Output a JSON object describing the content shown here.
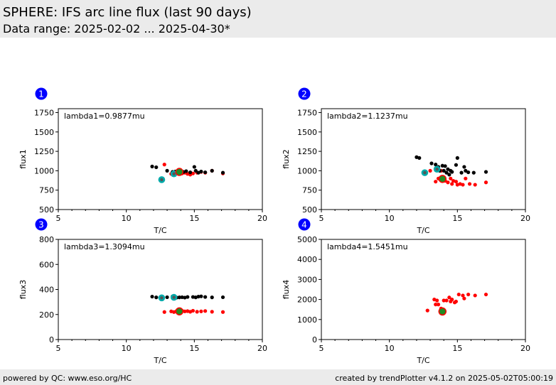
{
  "header": {
    "title": "SPHERE: IFS arc line flux (last 90 days)",
    "subtitle": "Data range: 2025-02-02 ... 2025-04-30*"
  },
  "footer": {
    "left": "powered by QC: www.eso.org/HC",
    "right": "created by trendPlotter v4.1.2 on 2025-05-02T05:00:19"
  },
  "colors": {
    "current": "#000000",
    "other": "#ff0000",
    "highlight": "#00aaaa",
    "median": "#228b22",
    "badge": "#0000ff"
  },
  "chart_data": [
    {
      "type": "scatter",
      "badge": "1",
      "annotation": "lambda1=0.9877mu",
      "xlabel": "T/C",
      "ylabel": "flux1",
      "xlim": [
        5,
        20
      ],
      "ylim": [
        500,
        1800
      ],
      "xticks": [
        5,
        10,
        15,
        20
      ],
      "yticks": [
        500,
        750,
        1000,
        1250,
        1500,
        1750
      ],
      "series": [
        {
          "role": "black",
          "x": [
            11.9,
            12.2,
            13.0,
            13.4,
            13.6,
            13.8,
            14.0,
            14.2,
            14.4,
            14.7,
            15.0,
            15.1,
            15.3,
            15.5,
            15.8,
            16.3,
            17.1
          ],
          "y": [
            1055,
            1045,
            1000,
            985,
            990,
            1000,
            990,
            985,
            995,
            980,
            1050,
            1000,
            975,
            990,
            980,
            1000,
            975
          ]
        },
        {
          "role": "red",
          "x": [
            12.8,
            13.3,
            13.5,
            13.7,
            13.9,
            14.1,
            14.3,
            14.5,
            14.7,
            14.9,
            15.2,
            15.5,
            15.8,
            16.3,
            17.1
          ],
          "y": [
            1080,
            960,
            975,
            990,
            985,
            965,
            975,
            960,
            950,
            965,
            975,
            985,
            975,
            1000,
            965
          ]
        },
        {
          "role": "cyan",
          "x": [
            12.6,
            13.5
          ],
          "y": [
            885,
            960
          ]
        },
        {
          "role": "green",
          "x": [
            13.9
          ],
          "y": [
            985
          ]
        }
      ]
    },
    {
      "type": "scatter",
      "badge": "2",
      "annotation": "lambda2=1.1237mu",
      "xlabel": "T/C",
      "ylabel": "flux2",
      "xlim": [
        5,
        20
      ],
      "ylim": [
        500,
        1800
      ],
      "xticks": [
        5,
        10,
        15,
        20
      ],
      "yticks": [
        500,
        750,
        1000,
        1250,
        1500,
        1750
      ],
      "series": [
        {
          "role": "black",
          "x": [
            12.0,
            12.2,
            13.1,
            13.4,
            13.6,
            13.7,
            13.9,
            14.0,
            14.1,
            14.2,
            14.3,
            14.4,
            14.5,
            14.6,
            14.9,
            15.0,
            15.3,
            15.5,
            15.6,
            15.8,
            16.2,
            17.1
          ],
          "y": [
            1175,
            1165,
            1095,
            1080,
            1050,
            1000,
            1065,
            1000,
            1060,
            975,
            1020,
            950,
            1000,
            985,
            1075,
            1165,
            975,
            1050,
            1000,
            980,
            975,
            985
          ]
        },
        {
          "role": "red",
          "x": [
            13.0,
            13.4,
            13.6,
            13.8,
            14.1,
            14.3,
            14.5,
            14.6,
            14.7,
            14.9,
            15.0,
            15.2,
            15.4,
            15.6,
            15.9,
            16.3,
            17.1
          ],
          "y": [
            1000,
            860,
            900,
            1000,
            870,
            850,
            900,
            830,
            870,
            860,
            820,
            830,
            820,
            900,
            830,
            820,
            850
          ]
        },
        {
          "role": "cyan",
          "x": [
            12.6,
            13.5
          ],
          "y": [
            975,
            1020
          ]
        },
        {
          "role": "green",
          "x": [
            13.9
          ],
          "y": [
            895
          ]
        }
      ]
    },
    {
      "type": "scatter",
      "badge": "3",
      "annotation": "lambda3=1.3094mu",
      "xlabel": "T/C",
      "ylabel": "flux3",
      "xlim": [
        5,
        20
      ],
      "ylim": [
        0,
        800
      ],
      "xticks": [
        5,
        10,
        15,
        20
      ],
      "yticks": [
        0,
        200,
        400,
        600,
        800
      ],
      "series": [
        {
          "role": "black",
          "x": [
            11.9,
            12.2,
            13.0,
            13.4,
            13.7,
            13.9,
            14.1,
            14.3,
            14.5,
            14.9,
            15.1,
            15.3,
            15.5,
            15.8,
            16.3,
            17.1
          ],
          "y": [
            343,
            337,
            338,
            345,
            335,
            337,
            338,
            335,
            340,
            340,
            337,
            343,
            345,
            340,
            337,
            338
          ]
        },
        {
          "role": "red",
          "x": [
            12.8,
            13.3,
            13.5,
            13.7,
            13.9,
            14.1,
            14.3,
            14.5,
            14.7,
            14.9,
            15.2,
            15.5,
            15.8,
            16.3,
            17.1
          ],
          "y": [
            220,
            225,
            220,
            228,
            222,
            230,
            225,
            227,
            222,
            230,
            222,
            225,
            228,
            222,
            220
          ]
        },
        {
          "role": "cyan",
          "x": [
            12.6,
            13.5
          ],
          "y": [
            333,
            337
          ]
        },
        {
          "role": "green",
          "x": [
            13.9
          ],
          "y": [
            225
          ]
        }
      ]
    },
    {
      "type": "scatter",
      "badge": "4",
      "annotation": "lambda4=1.5451mu",
      "xlabel": "T/C",
      "ylabel": "flux4",
      "xlim": [
        5,
        20
      ],
      "ylim": [
        0,
        5000
      ],
      "xticks": [
        5,
        10,
        15,
        20
      ],
      "yticks": [
        0,
        1000,
        2000,
        3000,
        4000,
        5000
      ],
      "series": [
        {
          "role": "red",
          "x": [
            12.8,
            13.3,
            13.4,
            13.5,
            13.6,
            13.8,
            14.0,
            14.2,
            14.4,
            14.5,
            14.6,
            14.8,
            14.9,
            15.1,
            15.4,
            15.5,
            15.8,
            16.3,
            17.1
          ],
          "y": [
            1450,
            2000,
            1750,
            1950,
            1750,
            1550,
            1950,
            1950,
            2100,
            1900,
            2000,
            1850,
            1900,
            2250,
            2200,
            2050,
            2250,
            2200,
            2250
          ]
        },
        {
          "role": "green",
          "x": [
            13.9
          ],
          "y": [
            1400
          ]
        }
      ]
    }
  ]
}
